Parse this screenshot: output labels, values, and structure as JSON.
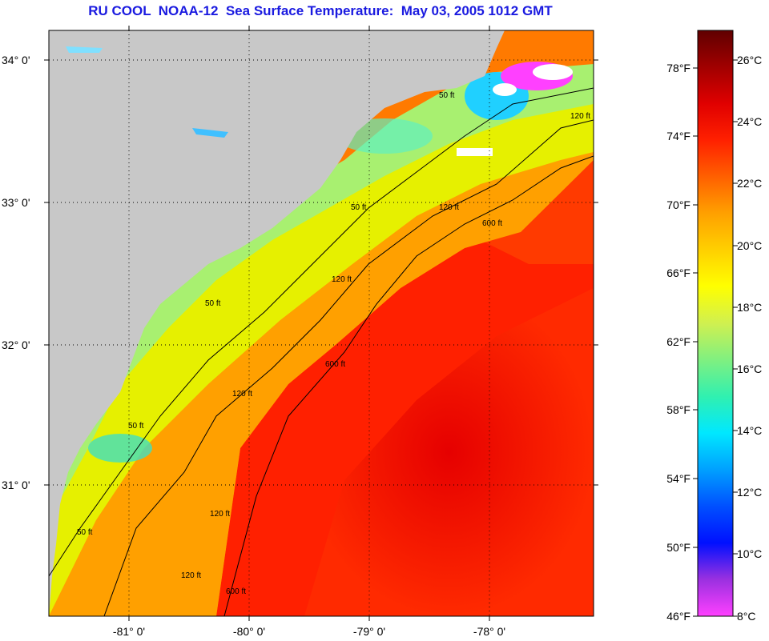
{
  "title": "RU COOL  NOAA-12  Sea Surface Temperature:  May 03, 2005 1012 GMT",
  "map": {
    "lat_labels": [
      "34° 0'",
      "33° 0'",
      "32° 0'",
      "31° 0'"
    ],
    "lon_labels": [
      "-81° 0'",
      "-80° 0'",
      "-79° 0'",
      "-78° 0'"
    ],
    "contour_labels": [
      "50 ft",
      "50 ft",
      "50 ft",
      "50 ft",
      "50 ft",
      "120 ft",
      "120 ft",
      "120 ft",
      "120 ft",
      "120 ft",
      "120 ft",
      "600 ft",
      "600 ft",
      "600 ft"
    ]
  },
  "colorbar": {
    "fahrenheit_labels": [
      "78°F",
      "74°F",
      "70°F",
      "66°F",
      "62°F",
      "58°F",
      "54°F",
      "50°F",
      "46°F"
    ],
    "celsius_labels": [
      "26°C",
      "24°C",
      "22°C",
      "20°C",
      "18°C",
      "16°C",
      "14°C",
      "12°C",
      "10°C",
      "8°C"
    ],
    "colors": [
      "#ff40ff",
      "#9a30e0",
      "#0010ff",
      "#0050ff",
      "#00a0ff",
      "#00e8ff",
      "#30f0b0",
      "#80f080",
      "#d0f050",
      "#ffff00",
      "#ffd000",
      "#ffa000",
      "#ff6000",
      "#ff2000",
      "#e00000",
      "#a00000",
      "#600000"
    ]
  }
}
